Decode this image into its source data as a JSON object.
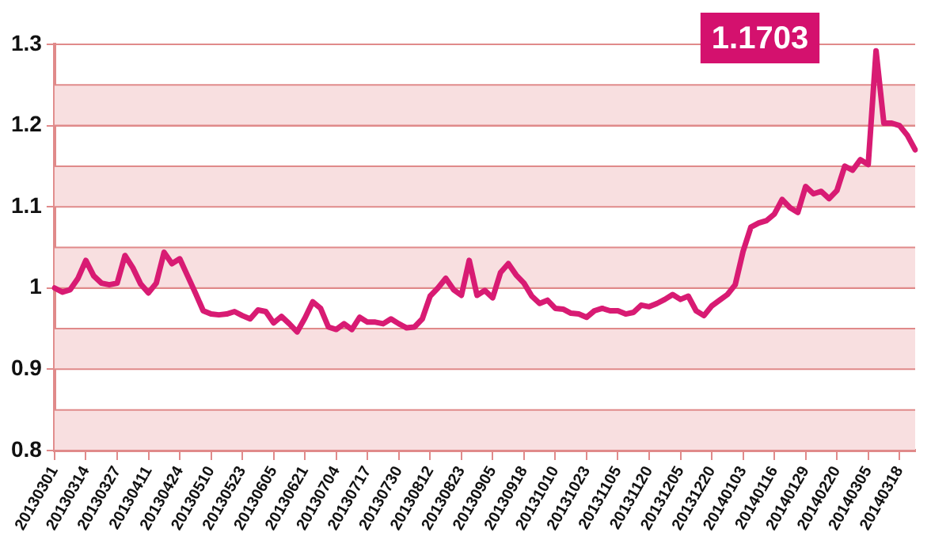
{
  "chart_data": {
    "type": "line",
    "categories": [
      "20130301",
      null,
      null,
      null,
      "20130314",
      null,
      null,
      null,
      "20130327",
      null,
      null,
      null,
      "20130411",
      null,
      null,
      null,
      "20130424",
      null,
      null,
      null,
      "20130510",
      null,
      null,
      null,
      "20130523",
      null,
      null,
      null,
      "20130605",
      null,
      null,
      null,
      "20130621",
      null,
      null,
      null,
      "20130704",
      null,
      null,
      null,
      "20130717",
      null,
      null,
      null,
      "20130730",
      null,
      null,
      null,
      "20130812",
      null,
      null,
      null,
      "20130823",
      null,
      null,
      null,
      "20130905",
      null,
      null,
      null,
      "20130918",
      null,
      null,
      null,
      "20131010",
      null,
      null,
      null,
      "20131023",
      null,
      null,
      null,
      "20131105",
      null,
      null,
      null,
      "20131120",
      null,
      null,
      null,
      "20131205",
      null,
      null,
      null,
      "20131220",
      null,
      null,
      null,
      "20140103",
      null,
      null,
      null,
      "20140116",
      null,
      null,
      null,
      "20140129",
      null,
      null,
      null,
      "20140220",
      null,
      null,
      null,
      "20140305",
      null,
      null,
      null,
      "20140318",
      null,
      null
    ],
    "series": [
      {
        "color": "#d81b73",
        "values": [
          1.0,
          0.995,
          0.998,
          1.012,
          1.034,
          1.015,
          1.006,
          1.004,
          1.006,
          1.04,
          1.025,
          1.005,
          0.994,
          1.006,
          1.044,
          1.03,
          1.036,
          1.015,
          0.994,
          0.972,
          0.968,
          0.967,
          0.968,
          0.971,
          0.966,
          0.962,
          0.973,
          0.971,
          0.957,
          0.965,
          0.956,
          0.946,
          0.963,
          0.983,
          0.975,
          0.952,
          0.949,
          0.956,
          0.949,
          0.964,
          0.958,
          0.958,
          0.956,
          0.962,
          0.956,
          0.951,
          0.952,
          0.962,
          0.99,
          1.0,
          1.012,
          0.998,
          0.991,
          1.034,
          0.991,
          0.997,
          0.988,
          1.019,
          1.03,
          1.016,
          1.006,
          0.99,
          0.981,
          0.985,
          0.975,
          0.974,
          0.969,
          0.968,
          0.964,
          0.972,
          0.975,
          0.972,
          0.972,
          0.968,
          0.97,
          0.979,
          0.977,
          0.981,
          0.986,
          0.992,
          0.986,
          0.99,
          0.972,
          0.966,
          0.978,
          0.985,
          0.992,
          1.004,
          1.045,
          1.075,
          1.08,
          1.083,
          1.091,
          1.109,
          1.099,
          1.093,
          1.125,
          1.116,
          1.119,
          1.11,
          1.12,
          1.15,
          1.145,
          1.158,
          1.152,
          1.292,
          1.203,
          1.203,
          1.2,
          1.188,
          1.1703
        ]
      }
    ],
    "ylim": [
      0.8,
      1.3
    ],
    "yticks": [
      0.8,
      0.9,
      1,
      1.1,
      1.2,
      1.3
    ],
    "grid": "y",
    "legend": false,
    "marker": "none",
    "line_style": "solid",
    "bands": [
      {
        "axis": "y",
        "from": 0.8,
        "to": 0.85,
        "color": "#f8dfe0"
      },
      {
        "axis": "y",
        "from": 0.9,
        "to": 0.95,
        "color": "#f8dfe0"
      },
      {
        "axis": "y",
        "from": 1.0,
        "to": 1.05,
        "color": "#f8dfe0"
      },
      {
        "axis": "y",
        "from": 1.1,
        "to": 1.15,
        "color": "#f8dfe0"
      },
      {
        "axis": "y",
        "from": 1.2,
        "to": 1.25,
        "color": "#f8dfe0"
      }
    ],
    "annotations": [
      "1.1703"
    ]
  }
}
